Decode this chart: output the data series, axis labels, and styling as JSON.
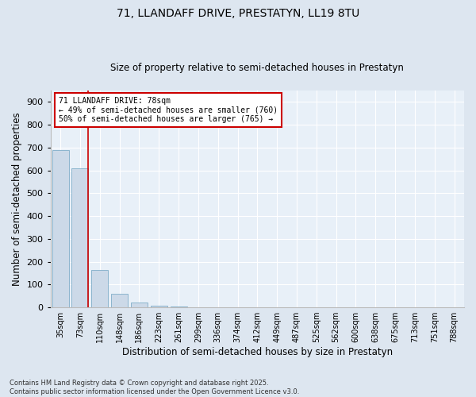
{
  "title_line1": "71, LLANDAFF DRIVE, PRESTATYN, LL19 8TU",
  "title_line2": "Size of property relative to semi-detached houses in Prestatyn",
  "xlabel": "Distribution of semi-detached houses by size in Prestatyn",
  "ylabel": "Number of semi-detached properties",
  "categories": [
    "35sqm",
    "73sqm",
    "110sqm",
    "148sqm",
    "186sqm",
    "223sqm",
    "261sqm",
    "299sqm",
    "336sqm",
    "374sqm",
    "412sqm",
    "449sqm",
    "487sqm",
    "525sqm",
    "562sqm",
    "600sqm",
    "638sqm",
    "675sqm",
    "713sqm",
    "751sqm",
    "788sqm"
  ],
  "values": [
    690,
    610,
    165,
    60,
    20,
    8,
    3,
    1,
    0,
    0,
    0,
    0,
    0,
    0,
    0,
    0,
    0,
    0,
    0,
    0,
    0
  ],
  "bar_color": "#ccd9e8",
  "bar_edge_color": "#7facc8",
  "highlight_line_color": "#cc0000",
  "highlight_bar_index": 1,
  "annotation_title": "71 LLANDAFF DRIVE: 78sqm",
  "annotation_line1": "← 49% of semi-detached houses are smaller (760)",
  "annotation_line2": "50% of semi-detached houses are larger (765) →",
  "annotation_box_color": "#ffffff",
  "annotation_border_color": "#cc0000",
  "ylim": [
    0,
    950
  ],
  "yticks": [
    0,
    100,
    200,
    300,
    400,
    500,
    600,
    700,
    800,
    900
  ],
  "footnote_line1": "Contains HM Land Registry data © Crown copyright and database right 2025.",
  "footnote_line2": "Contains public sector information licensed under the Open Government Licence v3.0.",
  "bg_color": "#dde6f0",
  "plot_bg_color": "#e8f0f8"
}
